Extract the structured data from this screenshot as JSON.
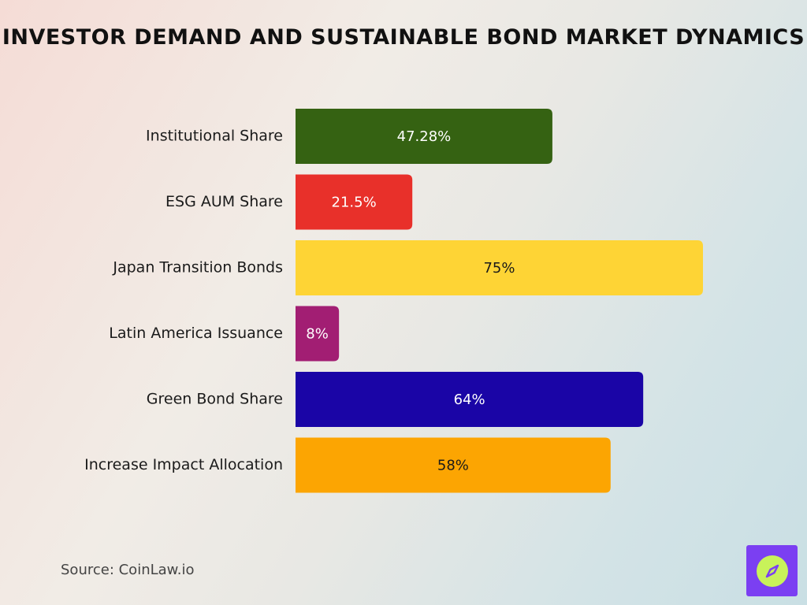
{
  "title": "Investor Demand and Sustainable Bond Market Dynamics",
  "source": "Source: CoinLaw.io",
  "logo_icon": "compass-icon",
  "colors": {
    "logo_bg": "#7b3ff2",
    "logo_circle": "#c8f25a"
  },
  "chart_data": {
    "type": "bar",
    "orientation": "horizontal",
    "title": "Investor Demand and Sustainable Bond Market Dynamics",
    "categories": [
      "Institutional Share",
      "ESG AUM Share",
      "Japan Transition Bonds",
      "Latin America Issuance",
      "Green Bond Share",
      "Increase Impact Allocation"
    ],
    "values": [
      47.28,
      21.5,
      75,
      8,
      64,
      58
    ],
    "value_labels": [
      "47.28%",
      "21.5%",
      "75%",
      "8%",
      "64%",
      "58%"
    ],
    "colors": [
      "#356212",
      "#e8302a",
      "#fed435",
      "#a21e73",
      "#1a05a6",
      "#fca502"
    ],
    "label_dark": [
      false,
      false,
      true,
      false,
      false,
      true
    ],
    "unit": "%",
    "grid": false,
    "legend": "none"
  }
}
